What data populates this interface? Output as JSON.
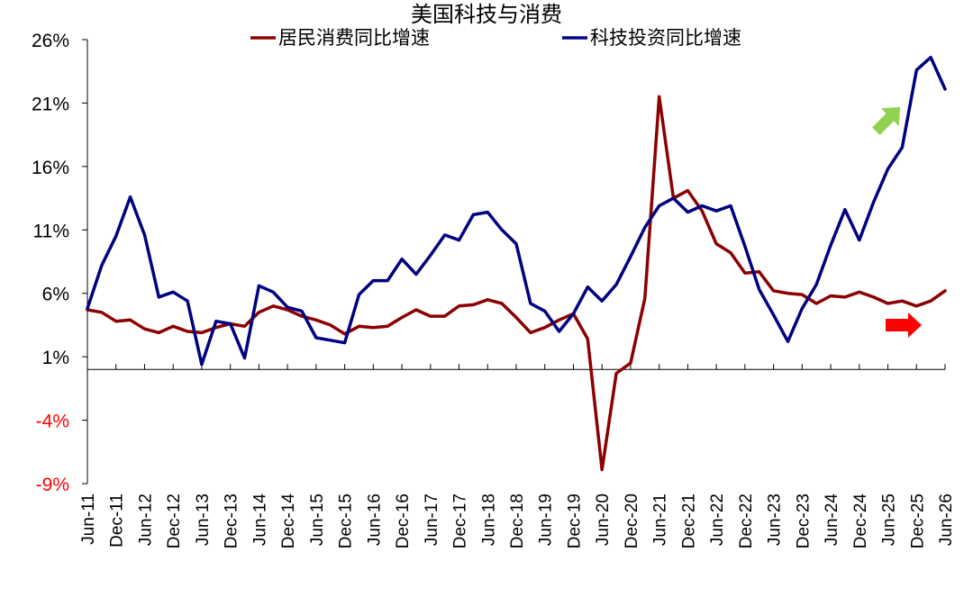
{
  "chart_data": {
    "type": "line",
    "title": "美国科技与消费",
    "x": [
      "Jun-11",
      "Sep-11",
      "Dec-11",
      "Mar-12",
      "Jun-12",
      "Sep-12",
      "Dec-12",
      "Mar-13",
      "Jun-13",
      "Sep-13",
      "Dec-13",
      "Mar-14",
      "Jun-14",
      "Sep-14",
      "Dec-14",
      "Mar-15",
      "Jun-15",
      "Sep-15",
      "Dec-15",
      "Mar-16",
      "Jun-16",
      "Sep-16",
      "Dec-16",
      "Mar-17",
      "Jun-17",
      "Sep-17",
      "Dec-17",
      "Mar-18",
      "Jun-18",
      "Sep-18",
      "Dec-18",
      "Mar-19",
      "Jun-19",
      "Sep-19",
      "Dec-19",
      "Mar-20",
      "Jun-20",
      "Sep-20",
      "Dec-20",
      "Mar-21",
      "Jun-21",
      "Sep-21",
      "Dec-21",
      "Mar-22",
      "Jun-22",
      "Sep-22",
      "Dec-22",
      "Mar-23",
      "Jun-23",
      "Sep-23",
      "Dec-23",
      "Mar-24",
      "Jun-24",
      "Sep-24",
      "Dec-24",
      "Mar-25",
      "Jun-25",
      "Sep-25",
      "Dec-25",
      "Mar-26",
      "Jun-26"
    ],
    "x_tick_labels": [
      "Jun-11",
      "Dec-11",
      "Jun-12",
      "Dec-12",
      "Jun-13",
      "Dec-13",
      "Jun-14",
      "Dec-14",
      "Jun-15",
      "Dec-15",
      "Jun-16",
      "Dec-16",
      "Jun-17",
      "Dec-17",
      "Jun-18",
      "Dec-18",
      "Jun-19",
      "Dec-19",
      "Jun-20",
      "Dec-20",
      "Jun-21",
      "Dec-21",
      "Jun-22",
      "Dec-22",
      "Jun-23",
      "Dec-23",
      "Jun-24",
      "Dec-24",
      "Jun-25",
      "Dec-25",
      "Jun-26"
    ],
    "series": [
      {
        "name": "居民消费同比增速",
        "color": "#8B0000",
        "values": [
          4.7,
          4.5,
          3.8,
          3.9,
          3.2,
          2.9,
          3.4,
          3.0,
          2.9,
          3.3,
          3.6,
          3.4,
          4.5,
          5.0,
          4.7,
          4.2,
          3.9,
          3.5,
          2.8,
          3.4,
          3.3,
          3.4,
          4.1,
          4.7,
          4.2,
          4.2,
          5.0,
          5.1,
          5.5,
          5.2,
          4.1,
          2.9,
          3.3,
          3.9,
          4.4,
          2.4,
          -7.9,
          -0.3,
          0.5,
          5.6,
          21.5,
          13.5,
          14.1,
          12.5,
          9.9,
          9.2,
          7.6,
          7.7,
          6.2,
          6.0,
          5.9,
          5.2,
          5.8,
          5.7,
          6.1,
          5.7,
          5.2,
          5.4,
          5.0,
          5.4,
          6.2
        ]
      },
      {
        "name": "科技投资同比增速",
        "color": "#000080",
        "values": [
          4.8,
          8.2,
          10.5,
          13.6,
          10.6,
          5.7,
          6.1,
          5.4,
          0.4,
          3.8,
          3.6,
          0.9,
          6.6,
          6.1,
          4.9,
          4.6,
          2.5,
          2.3,
          2.1,
          5.9,
          7.0,
          7.0,
          8.7,
          7.5,
          9.0,
          10.6,
          10.2,
          12.2,
          12.4,
          11.0,
          9.9,
          5.2,
          4.6,
          3.0,
          4.4,
          6.5,
          5.4,
          6.7,
          8.9,
          11.2,
          12.9,
          13.5,
          12.4,
          12.9,
          12.5,
          12.9,
          9.7,
          6.3,
          4.3,
          2.2,
          4.8,
          6.7,
          9.8,
          12.6,
          10.2,
          13.2,
          15.8,
          17.5,
          23.6,
          24.6,
          22.1
        ]
      }
    ],
    "y_ticks": [
      "26%",
      "21%",
      "16%",
      "11%",
      "6%",
      "1%",
      "-4%",
      "-9%"
    ],
    "y_tick_values": [
      26,
      21,
      16,
      11,
      6,
      1,
      -4,
      -9
    ],
    "ylim": [
      -9,
      26
    ],
    "legend_placement": "top-center",
    "grid": false,
    "annotations": [
      {
        "type": "arrow-up-right",
        "color": "#92D050"
      },
      {
        "type": "arrow-right",
        "color": "#FF0000"
      }
    ],
    "positive_tick_color": "#000000",
    "negative_tick_color": "#FF0000"
  }
}
